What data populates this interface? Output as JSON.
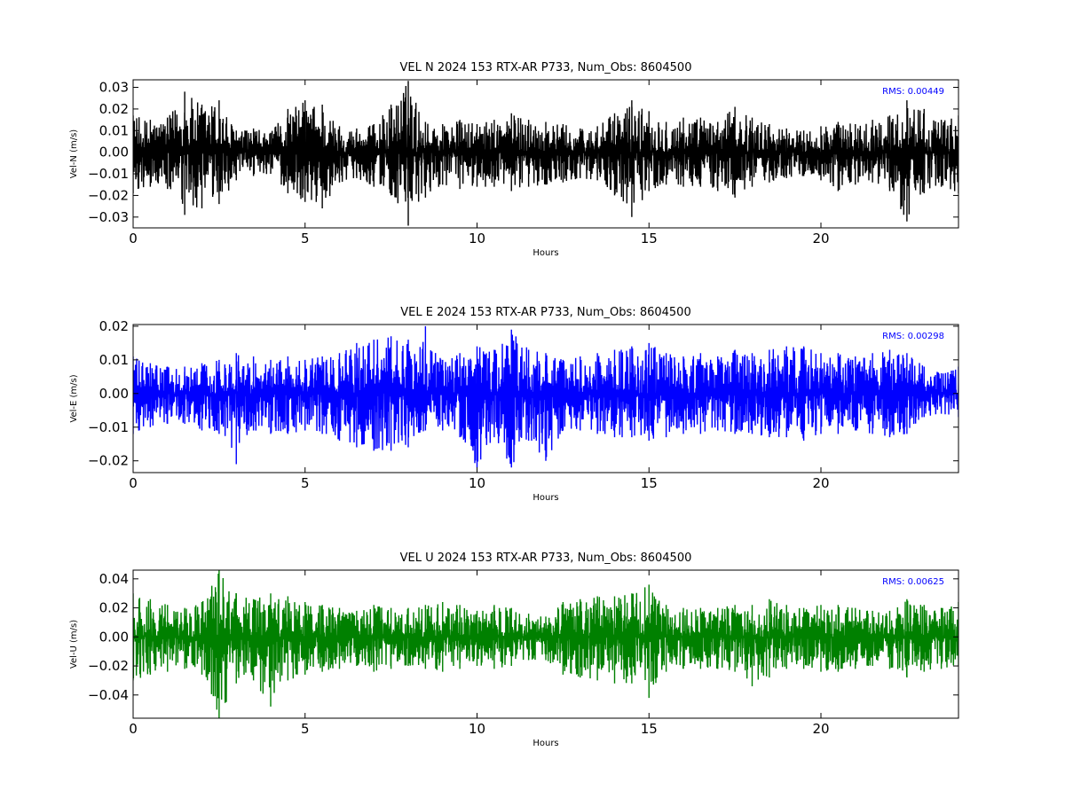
{
  "figure": {
    "background": "#ffffff",
    "rms_color": "#0000ff"
  },
  "chart_data": [
    {
      "type": "line",
      "title": "VEL N 2024 153 RTX-AR  P733, Num_Obs: 8604500",
      "xlabel": "Hours",
      "ylabel": "Vel-N (m/s)",
      "annotation": "RMS:  0.00449",
      "color": "#000000",
      "xlim": [
        0,
        24
      ],
      "ylim": [
        -0.035,
        0.0335
      ],
      "xticks": [
        0,
        5,
        10,
        15,
        20
      ],
      "xtick_labels": [
        "0",
        "5",
        "10",
        "15",
        "20"
      ],
      "yticks": [
        -0.03,
        -0.02,
        -0.01,
        0.0,
        0.01,
        0.02,
        0.03
      ],
      "ytick_labels": [
        "−0.03",
        "−0.02",
        "−0.01",
        "0.00",
        "0.01",
        "0.02",
        "0.03"
      ],
      "series": [
        {
          "x": [
            0,
            0.5,
            1.0,
            1.5,
            2.0,
            2.5,
            3.0,
            3.5,
            4.0,
            4.5,
            5.0,
            5.5,
            6.0,
            6.5,
            7.0,
            7.5,
            8.0,
            8.5,
            9.0,
            9.5,
            10.0,
            10.5,
            11.0,
            11.5,
            12.0,
            12.5,
            13.0,
            13.5,
            14.0,
            14.5,
            15.0,
            15.5,
            16.0,
            16.5,
            17.0,
            17.5,
            18.0,
            18.5,
            19.0,
            19.5,
            20.0,
            20.5,
            21.0,
            21.5,
            22.0,
            22.5,
            23.0,
            23.5,
            24.0
          ],
          "upper": [
            0.017,
            0.015,
            0.016,
            0.028,
            0.022,
            0.024,
            0.01,
            0.011,
            0.009,
            0.02,
            0.024,
            0.022,
            0.012,
            0.011,
            0.013,
            0.022,
            0.033,
            0.014,
            0.013,
            0.015,
            0.013,
            0.015,
            0.018,
            0.015,
            0.014,
            0.013,
            0.011,
            0.012,
            0.018,
            0.024,
            0.019,
            0.014,
            0.016,
            0.016,
            0.014,
            0.021,
            0.016,
            0.013,
            0.011,
            0.01,
            0.012,
            0.014,
            0.013,
            0.015,
            0.017,
            0.024,
            0.02,
            0.015,
            0.017
          ],
          "lower": [
            -0.019,
            -0.016,
            -0.017,
            -0.029,
            -0.026,
            -0.024,
            -0.013,
            -0.011,
            -0.01,
            -0.019,
            -0.023,
            -0.026,
            -0.014,
            -0.012,
            -0.016,
            -0.02,
            -0.034,
            -0.021,
            -0.015,
            -0.017,
            -0.016,
            -0.016,
            -0.018,
            -0.016,
            -0.015,
            -0.014,
            -0.012,
            -0.013,
            -0.02,
            -0.03,
            -0.018,
            -0.015,
            -0.016,
            -0.016,
            -0.018,
            -0.021,
            -0.016,
            -0.014,
            -0.012,
            -0.011,
            -0.013,
            -0.018,
            -0.015,
            -0.014,
            -0.018,
            -0.032,
            -0.019,
            -0.016,
            -0.019
          ]
        }
      ]
    },
    {
      "type": "line",
      "title": "VEL E 2024 153 RTX-AR  P733, Num_Obs: 8604500",
      "xlabel": "Hours",
      "ylabel": "Vel-E (m/s)",
      "annotation": "RMS:  0.00298",
      "color": "#0000ff",
      "xlim": [
        0,
        24
      ],
      "ylim": [
        -0.0235,
        0.0205
      ],
      "xticks": [
        0,
        5,
        10,
        15,
        20
      ],
      "xtick_labels": [
        "0",
        "5",
        "10",
        "15",
        "20"
      ],
      "yticks": [
        -0.02,
        -0.01,
        0.0,
        0.01,
        0.02
      ],
      "ytick_labels": [
        "−0.02",
        "−0.01",
        "0.00",
        "0.01",
        "0.02"
      ],
      "series": [
        {
          "x": [
            0,
            0.5,
            1.0,
            1.5,
            2.0,
            2.5,
            3.0,
            3.5,
            4.0,
            4.5,
            5.0,
            5.5,
            6.0,
            6.5,
            7.0,
            7.5,
            8.0,
            8.5,
            9.0,
            9.5,
            10.0,
            10.5,
            11.0,
            11.5,
            12.0,
            12.5,
            13.0,
            13.5,
            14.0,
            14.5,
            15.0,
            15.5,
            16.0,
            16.5,
            17.0,
            17.5,
            18.0,
            18.5,
            19.0,
            19.5,
            20.0,
            20.5,
            21.0,
            21.5,
            22.0,
            22.5,
            23.0,
            23.5,
            24.0
          ],
          "upper": [
            0.011,
            0.009,
            0.008,
            0.008,
            0.009,
            0.01,
            0.012,
            0.011,
            0.01,
            0.011,
            0.01,
            0.011,
            0.012,
            0.015,
            0.016,
            0.017,
            0.016,
            0.02,
            0.01,
            0.012,
            0.014,
            0.013,
            0.019,
            0.013,
            0.012,
            0.01,
            0.011,
            0.012,
            0.013,
            0.014,
            0.015,
            0.012,
            0.011,
            0.012,
            0.011,
            0.013,
            0.012,
            0.013,
            0.014,
            0.014,
            0.012,
            0.012,
            0.011,
            0.012,
            0.013,
            0.012,
            0.008,
            0.006,
            0.008
          ],
          "lower": [
            -0.012,
            -0.01,
            -0.009,
            -0.009,
            -0.011,
            -0.012,
            -0.021,
            -0.011,
            -0.012,
            -0.012,
            -0.011,
            -0.012,
            -0.014,
            -0.016,
            -0.017,
            -0.017,
            -0.016,
            -0.011,
            -0.011,
            -0.013,
            -0.022,
            -0.013,
            -0.022,
            -0.014,
            -0.02,
            -0.011,
            -0.011,
            -0.012,
            -0.013,
            -0.013,
            -0.014,
            -0.013,
            -0.012,
            -0.012,
            -0.011,
            -0.012,
            -0.012,
            -0.013,
            -0.013,
            -0.014,
            -0.012,
            -0.012,
            -0.011,
            -0.012,
            -0.013,
            -0.012,
            -0.007,
            -0.006,
            -0.007
          ]
        }
      ]
    },
    {
      "type": "line",
      "title": "VEL U 2024 153 RTX-AR  P733, Num_Obs: 8604500",
      "xlabel": "Hours",
      "ylabel": "Vel-U (m/s)",
      "annotation": "RMS:  0.00625",
      "color": "#008000",
      "xlim": [
        0,
        24
      ],
      "ylim": [
        -0.056,
        0.046
      ],
      "xticks": [
        0,
        5,
        10,
        15,
        20
      ],
      "xtick_labels": [
        "0",
        "5",
        "10",
        "15",
        "20"
      ],
      "yticks": [
        -0.04,
        -0.02,
        0.0,
        0.02,
        0.04
      ],
      "ytick_labels": [
        "−0.04",
        "−0.02",
        "0.00",
        "0.02",
        "0.04"
      ],
      "series": [
        {
          "x": [
            0,
            0.5,
            1.0,
            1.5,
            2.0,
            2.5,
            3.0,
            3.5,
            4.0,
            4.5,
            5.0,
            5.5,
            6.0,
            6.5,
            7.0,
            7.5,
            8.0,
            8.5,
            9.0,
            9.5,
            10.0,
            10.5,
            11.0,
            11.5,
            12.0,
            12.5,
            13.0,
            13.5,
            14.0,
            14.5,
            15.0,
            15.5,
            16.0,
            16.5,
            17.0,
            17.5,
            18.0,
            18.5,
            19.0,
            19.5,
            20.0,
            20.5,
            21.0,
            21.5,
            22.0,
            22.5,
            23.0,
            23.5,
            24.0
          ],
          "upper": [
            0.03,
            0.026,
            0.022,
            0.02,
            0.024,
            0.046,
            0.03,
            0.026,
            0.03,
            0.028,
            0.024,
            0.022,
            0.02,
            0.018,
            0.022,
            0.02,
            0.02,
            0.022,
            0.024,
            0.022,
            0.018,
            0.022,
            0.02,
            0.016,
            0.014,
            0.024,
            0.026,
            0.028,
            0.028,
            0.03,
            0.036,
            0.022,
            0.02,
            0.02,
            0.02,
            0.022,
            0.022,
            0.026,
            0.022,
            0.02,
            0.022,
            0.022,
            0.02,
            0.018,
            0.018,
            0.026,
            0.022,
            0.02,
            0.024
          ],
          "lower": [
            -0.03,
            -0.026,
            -0.024,
            -0.022,
            -0.026,
            -0.056,
            -0.032,
            -0.03,
            -0.048,
            -0.03,
            -0.026,
            -0.024,
            -0.022,
            -0.02,
            -0.024,
            -0.022,
            -0.02,
            -0.022,
            -0.024,
            -0.022,
            -0.02,
            -0.022,
            -0.02,
            -0.016,
            -0.016,
            -0.026,
            -0.028,
            -0.03,
            -0.032,
            -0.032,
            -0.042,
            -0.024,
            -0.022,
            -0.022,
            -0.022,
            -0.024,
            -0.034,
            -0.028,
            -0.022,
            -0.022,
            -0.024,
            -0.024,
            -0.022,
            -0.02,
            -0.022,
            -0.028,
            -0.024,
            -0.022,
            -0.02
          ]
        }
      ]
    }
  ]
}
